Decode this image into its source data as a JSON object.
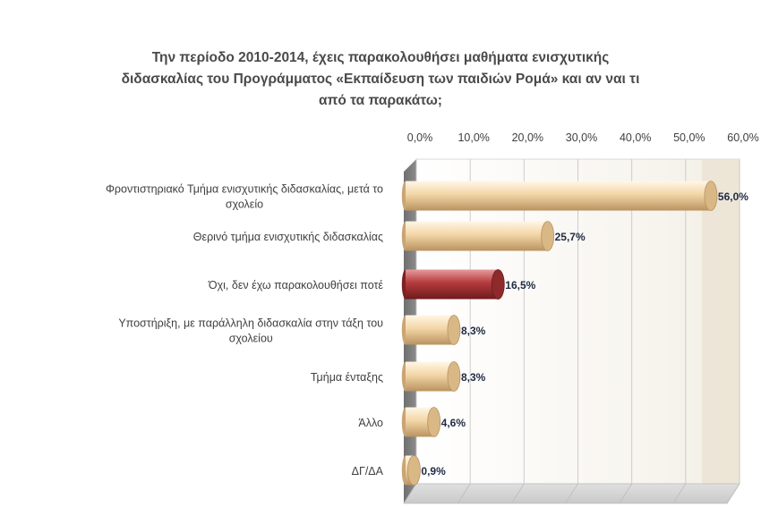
{
  "chart_data": {
    "type": "bar",
    "orientation": "horizontal",
    "title_lines": [
      "Την περίοδο 2010-2014, έχεις παρακολουθήσει μαθήματα ενισχυτικής",
      "διδασκαλίας του Προγράμματος «Εκπαίδευση των παιδιών Ρομά» και αν ναι τι",
      "από τα παρακάτω;"
    ],
    "categories": [
      "Φροντιστηριακό Τμήμα ενισχυτικής διδασκαλίας, μετά το σχολείο",
      "Θερινό τμήμα ενισχυτικής διδασκαλίας",
      "Όχι, δεν έχω παρακολουθήσει ποτέ",
      "Υποστήριξη, με παράλληλη διδασκαλία στην τάξη του σχολείου",
      "Τμήμα ένταξης",
      "Άλλο",
      "ΔΓ/ΔΑ"
    ],
    "category_lines": [
      [
        "Φροντιστηριακό Τμήμα ενισχυτικής διδασκαλίας, μετά το",
        "σχολείο"
      ],
      [
        "Θερινό τμήμα ενισχυτικής διδασκαλίας"
      ],
      [
        "Όχι, δεν έχω παρακολουθήσει ποτέ"
      ],
      [
        "Υποστήριξη, με παράλληλη διδασκαλία στην τάξη του",
        "σχολείου"
      ],
      [
        "Τμήμα ένταξης"
      ],
      [
        "Άλλο"
      ],
      [
        "ΔΓ/ΔΑ"
      ]
    ],
    "values": [
      56.0,
      25.7,
      16.5,
      8.3,
      8.3,
      4.6,
      0.9
    ],
    "value_labels": [
      "56,0%",
      "25,7%",
      "16,5%",
      "8,3%",
      "8,3%",
      "4,6%",
      "0,9%"
    ],
    "highlight_index": 2,
    "xlim": [
      0,
      60
    ],
    "x_ticks": [
      0,
      10,
      20,
      30,
      40,
      50,
      60
    ],
    "x_tick_labels": [
      "0,0%",
      "10,0%",
      "20,0%",
      "30,0%",
      "40,0%",
      "50,0%",
      "60,0%"
    ],
    "axis_position": "top",
    "grid": true,
    "legend": "none",
    "colors": {
      "bar": "#f3d6a6",
      "bar_highlight": "#b43a3c",
      "title": "#4a4a4a",
      "label": "#404040",
      "value_label": "#1f2a44",
      "wall": "#f2eee4",
      "floor": "#c9c9c9",
      "side_wall": "#8c8c8c"
    }
  }
}
